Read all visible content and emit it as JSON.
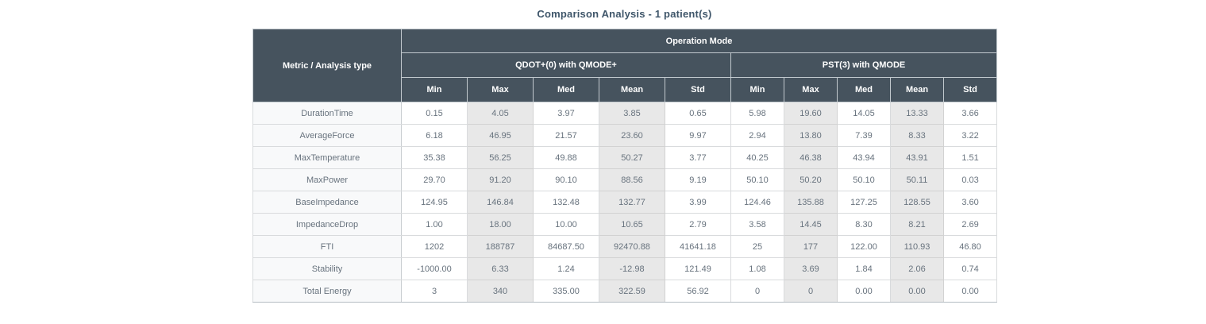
{
  "title": "Comparison Analysis - 1 patient(s)",
  "colors": {
    "header_bg": "#46535e",
    "header_text": "#ffffff",
    "shaded_cell_bg": "#e8e8e8",
    "metric_column_bg": "#f8f9fa",
    "cell_text": "#68737e",
    "title_text": "#3f566a",
    "border": "#d9dbdd"
  },
  "table": {
    "corner_header": "Metric / Analysis type",
    "top_header": "Operation Mode",
    "groups": [
      {
        "label": "QDOT+(0) with QMODE+"
      },
      {
        "label": "PST(3) with QMODE"
      }
    ],
    "stat_headers": [
      "Min",
      "Max",
      "Med",
      "Mean",
      "Std"
    ],
    "rows": [
      {
        "metric": "DurationTime",
        "qdot": [
          "0.15",
          "4.05",
          "3.97",
          "3.85",
          "0.65"
        ],
        "pst": [
          "5.98",
          "19.60",
          "14.05",
          "13.33",
          "3.66"
        ]
      },
      {
        "metric": "AverageForce",
        "qdot": [
          "6.18",
          "46.95",
          "21.57",
          "23.60",
          "9.97"
        ],
        "pst": [
          "2.94",
          "13.80",
          "7.39",
          "8.33",
          "3.22"
        ]
      },
      {
        "metric": "MaxTemperature",
        "qdot": [
          "35.38",
          "56.25",
          "49.88",
          "50.27",
          "3.77"
        ],
        "pst": [
          "40.25",
          "46.38",
          "43.94",
          "43.91",
          "1.51"
        ]
      },
      {
        "metric": "MaxPower",
        "qdot": [
          "29.70",
          "91.20",
          "90.10",
          "88.56",
          "9.19"
        ],
        "pst": [
          "50.10",
          "50.20",
          "50.10",
          "50.11",
          "0.03"
        ]
      },
      {
        "metric": "BaseImpedance",
        "qdot": [
          "124.95",
          "146.84",
          "132.48",
          "132.77",
          "3.99"
        ],
        "pst": [
          "124.46",
          "135.88",
          "127.25",
          "128.55",
          "3.60"
        ]
      },
      {
        "metric": "ImpedanceDrop",
        "qdot": [
          "1.00",
          "18.00",
          "10.00",
          "10.65",
          "2.79"
        ],
        "pst": [
          "3.58",
          "14.45",
          "8.30",
          "8.21",
          "2.69"
        ]
      },
      {
        "metric": "FTI",
        "qdot": [
          "1202",
          "188787",
          "84687.50",
          "92470.88",
          "41641.18"
        ],
        "pst": [
          "25",
          "177",
          "122.00",
          "110.93",
          "46.80"
        ]
      },
      {
        "metric": "Stability",
        "qdot": [
          "-1000.00",
          "6.33",
          "1.24",
          "-12.98",
          "121.49"
        ],
        "pst": [
          "1.08",
          "3.69",
          "1.84",
          "2.06",
          "0.74"
        ]
      },
      {
        "metric": "Total Energy",
        "qdot": [
          "3",
          "340",
          "335.00",
          "322.59",
          "56.92"
        ],
        "pst": [
          "0",
          "0",
          "0.00",
          "0.00",
          "0.00"
        ]
      }
    ]
  }
}
